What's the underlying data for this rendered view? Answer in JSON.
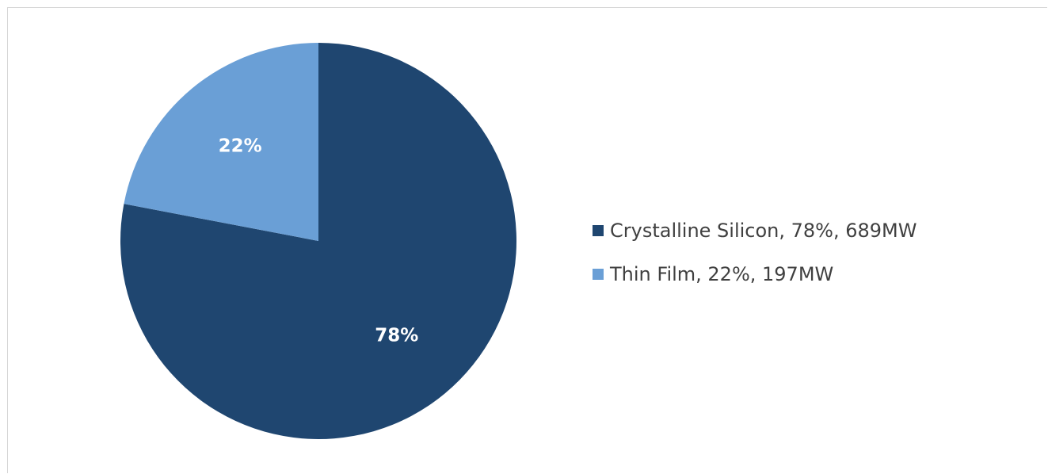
{
  "chart_data": {
    "type": "pie",
    "slices": [
      {
        "name": "Crystalline Silicon",
        "value": 78,
        "unit_value": "689MW",
        "color": "#1f4670",
        "data_label": "78%",
        "legend_label": "Crystalline Silicon, 78%, 689MW"
      },
      {
        "name": "Thin Film",
        "value": 22,
        "unit_value": "197MW",
        "color": "#6a9fd6",
        "data_label": "22%",
        "legend_label": "Thin Film, 22%, 197MW"
      }
    ],
    "start_angle": "12 o'clock, clockwise",
    "legend_position": "right"
  }
}
